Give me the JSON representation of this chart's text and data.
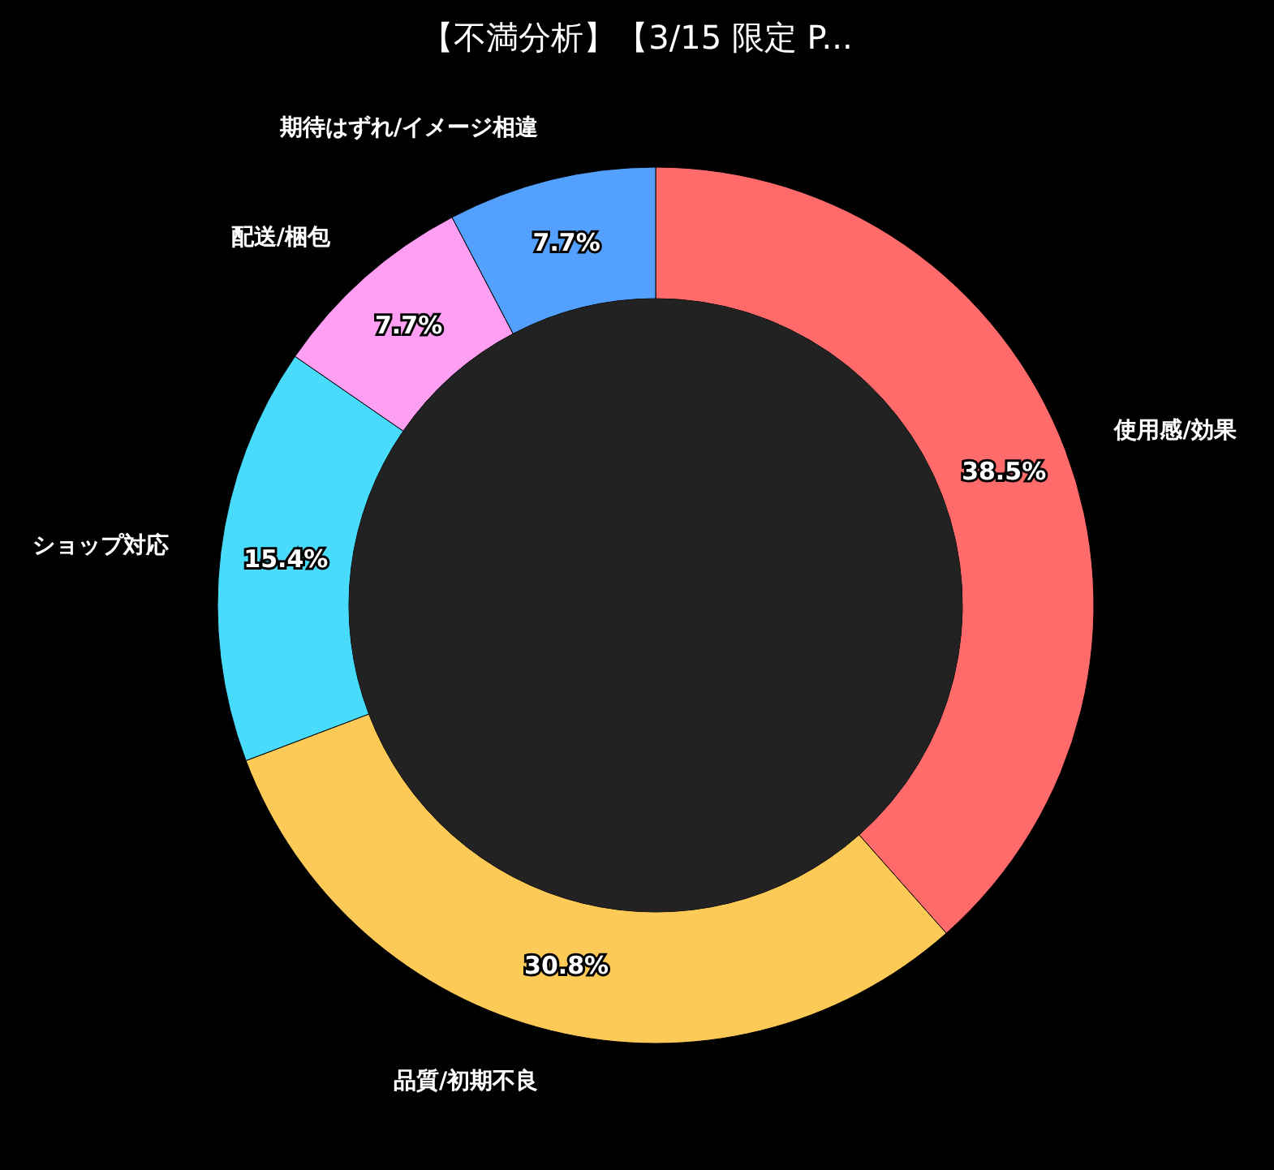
{
  "chart_data": {
    "type": "donut",
    "title": "【不満分析】【3/15 限定 P...",
    "categories": [
      "使用感/効果",
      "品質/初期不良",
      "ショップ対応",
      "配送/梱包",
      "期待はずれ/イメージ相違"
    ],
    "values": [
      38.5,
      30.8,
      15.4,
      7.7,
      7.7
    ],
    "colors": [
      "#ff6b6b",
      "#feca57",
      "#48dbfb",
      "#ff9ff3",
      "#54a0ff"
    ],
    "value_labels": [
      "38.5%",
      "30.8%",
      "15.4%",
      "7.7%",
      "7.7%"
    ],
    "legend": false
  }
}
